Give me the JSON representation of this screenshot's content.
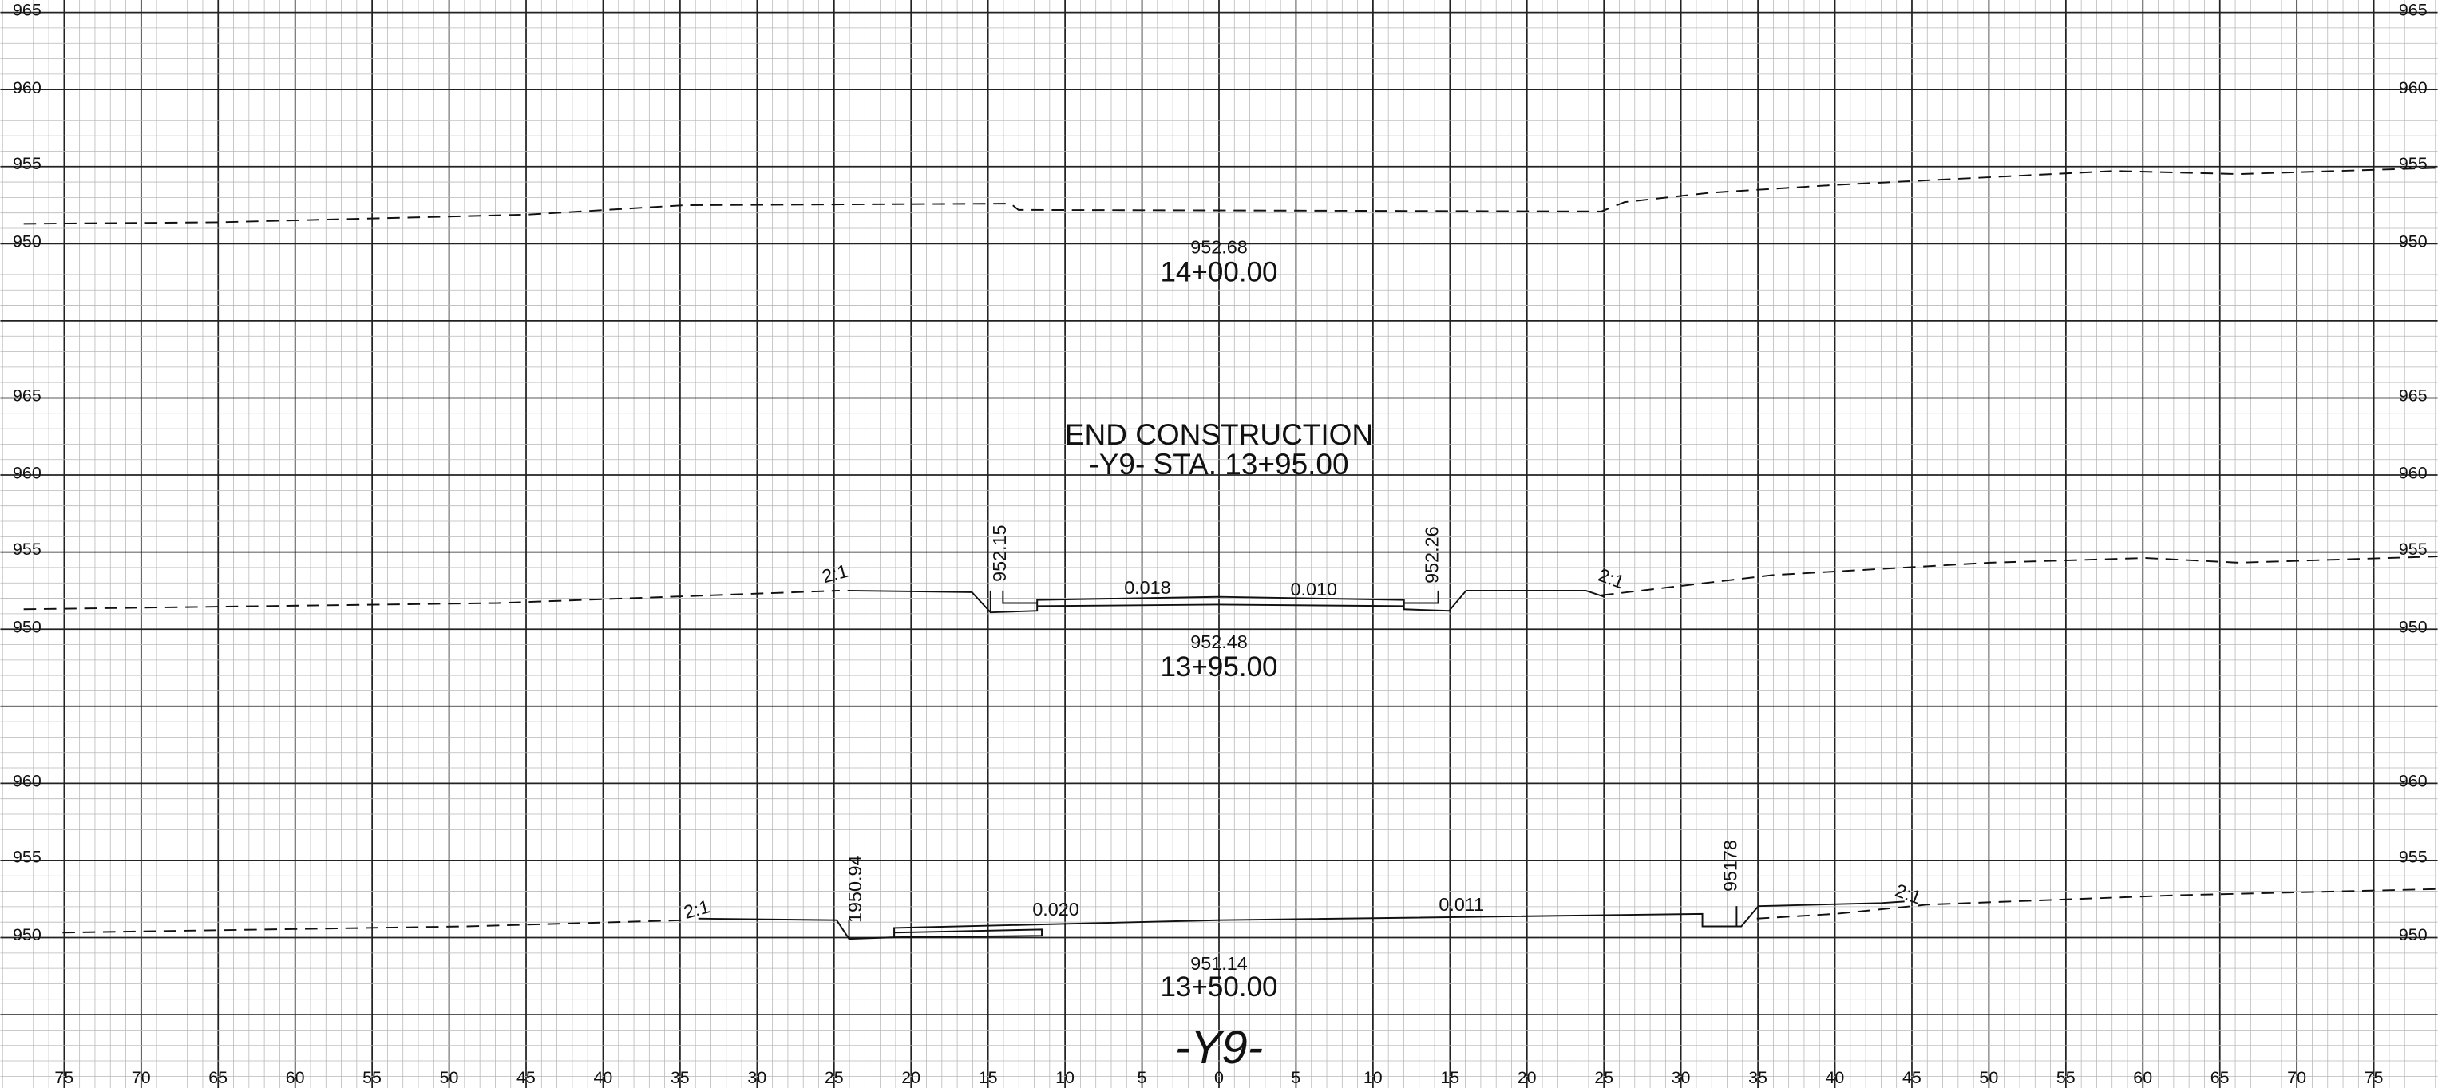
{
  "offsets": [
    75,
    70,
    65,
    60,
    55,
    50,
    45,
    40,
    35,
    30,
    25,
    20,
    15,
    10,
    5,
    0,
    5,
    10,
    15,
    20,
    25,
    30,
    35,
    40,
    45,
    50,
    55,
    60,
    65,
    70,
    75
  ],
  "sections": [
    {
      "elevations": [
        965,
        960,
        955,
        950
      ],
      "elevation": "952.68",
      "station": "14+00.00",
      "annotations": []
    },
    {
      "elevations": [
        965,
        960,
        955,
        950
      ],
      "elevation": "952.48",
      "station": "13+95.00",
      "annotations": [
        "2:1",
        "952.15",
        "0.018",
        "0.010",
        "952.26",
        "2:1"
      ]
    },
    {
      "elevations": [
        960,
        955,
        950
      ],
      "elevation": "951.14",
      "station": "13+50.00",
      "annotations": [
        "2:1",
        "1950.94",
        "0.020",
        "0.011",
        "95178",
        "2:1"
      ]
    }
  ],
  "title": "END CONSTRUCTION",
  "subtitle": "-Y9- STA. 13+95.00",
  "alignment": "-Y9-"
}
